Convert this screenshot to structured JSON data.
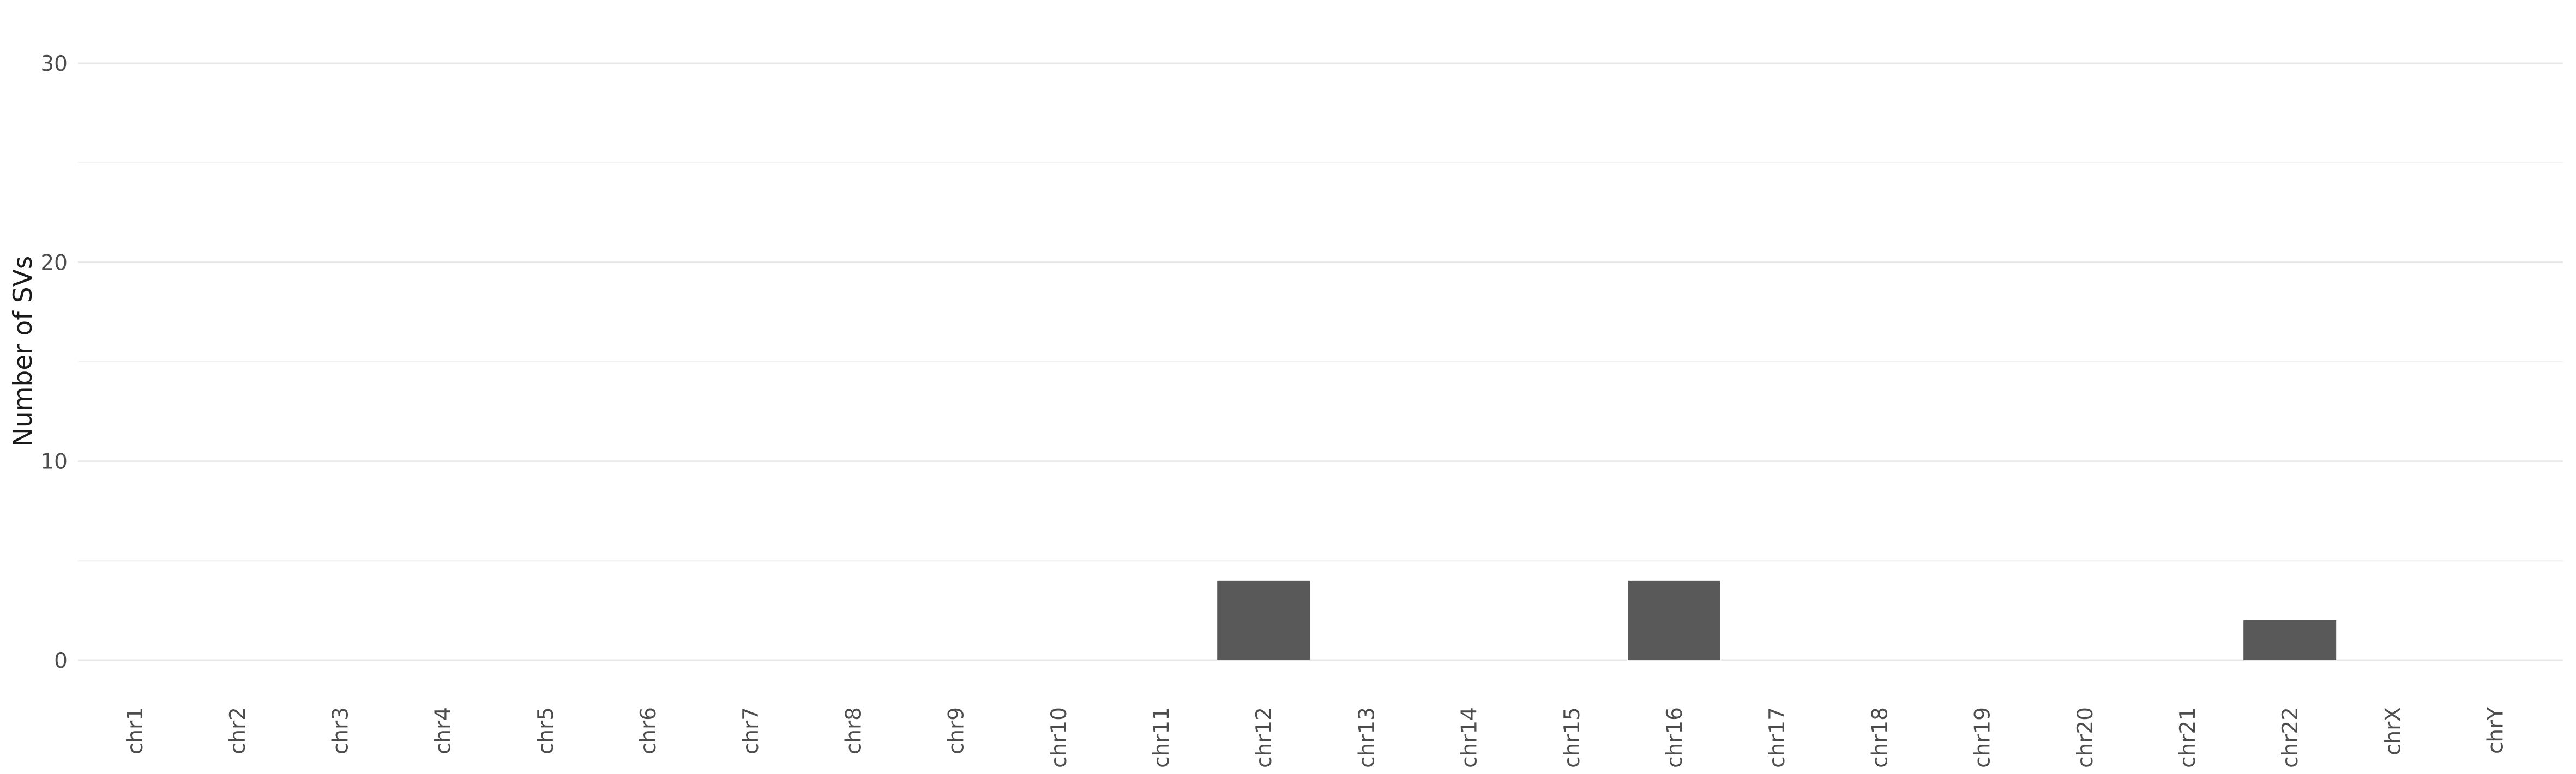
{
  "chart_data": {
    "type": "bar",
    "title": "",
    "xlabel": "",
    "ylabel": "Number of SVs",
    "categories": [
      "chr1",
      "chr2",
      "chr3",
      "chr4",
      "chr5",
      "chr6",
      "chr7",
      "chr8",
      "chr9",
      "chr10",
      "chr11",
      "chr12",
      "chr13",
      "chr14",
      "chr15",
      "chr16",
      "chr17",
      "chr18",
      "chr19",
      "chr20",
      "chr21",
      "chr22",
      "chrX",
      "chrY"
    ],
    "values": [
      0,
      0,
      0,
      0,
      0,
      0,
      0,
      0,
      0,
      0,
      0,
      4,
      0,
      0,
      0,
      4,
      0,
      0,
      0,
      0,
      0,
      2,
      0,
      0
    ],
    "ylim": [
      0,
      30
    ],
    "yticks": [
      0,
      10,
      20,
      30
    ],
    "grid": true,
    "legend": "none",
    "bar_color": "#595959",
    "grid_color": "#e8e8e8"
  }
}
